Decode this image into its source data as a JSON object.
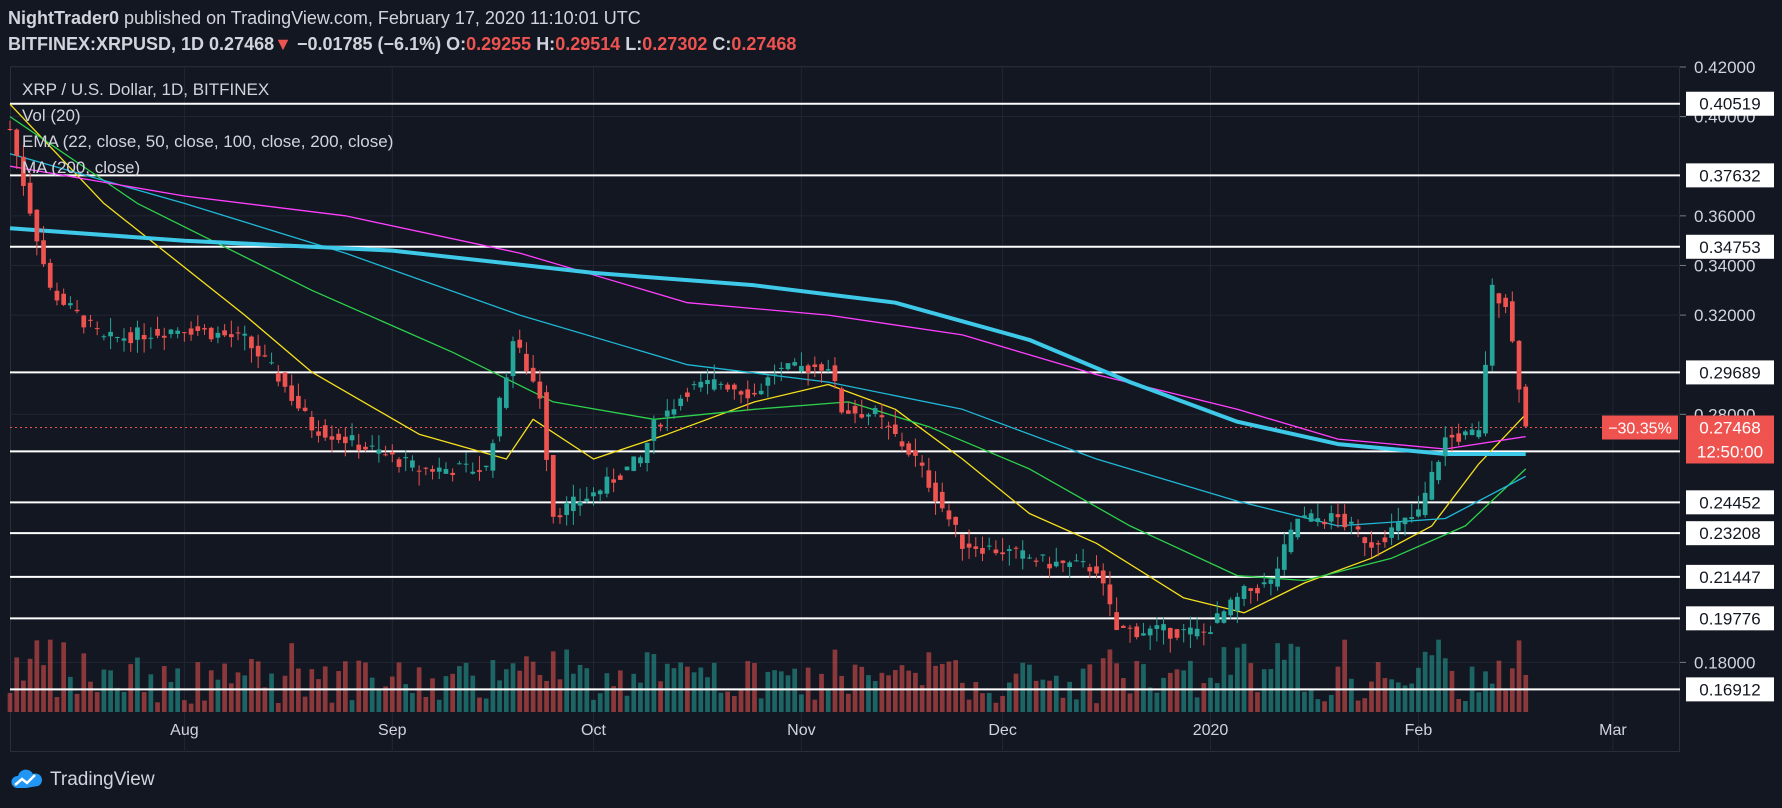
{
  "header": {
    "author": "NightTrader0",
    "published_text": "published on TradingView.com, February 17, 2020 11:10:01 UTC",
    "symbol": "BITFINEX:XRPUSD, 1D",
    "last": "0.27468",
    "change_arrow": "▼",
    "change": "−0.01785 (−6.1%)",
    "open_label": "O:",
    "open": "0.29255",
    "high_label": "H:",
    "high": "0.29514",
    "low_label": "L:",
    "low": "0.27302",
    "close_label": "C:",
    "close": "0.27468"
  },
  "legend": {
    "title": "XRP / U.S. Dollar, 1D, BITFINEX",
    "vol": "Vol (20)",
    "ema": "EMA (22, close, 50, close, 100, close, 200, close)",
    "ma": "MA (200, close)"
  },
  "footer": {
    "brand": "TradingView"
  },
  "colors": {
    "background": "#131722",
    "up": "#26a69a",
    "down": "#ef5350",
    "ema22": "#f7e01c",
    "ema50": "#2dd14b",
    "ema100": "#1fb8d6",
    "ema200": "#ff3fff",
    "ma200": "#3ec9e8",
    "hline": "#ffffff"
  },
  "chart_data": {
    "type": "candlestick",
    "title": "XRP / U.S. Dollar, 1D, BITFINEX",
    "x_tick_labels": [
      "Aug",
      "Sep",
      "Oct",
      "Nov",
      "Dec",
      "2020",
      "Feb",
      "Mar"
    ],
    "x_tick_dates": [
      "2019-08-01",
      "2019-09-01",
      "2019-10-01",
      "2019-11-01",
      "2019-12-01",
      "2020-01-01",
      "2020-02-01",
      "2020-03-01"
    ],
    "y_tick_labels": [
      "0.42000",
      "0.40000",
      "0.36000",
      "0.34000",
      "0.32000",
      "0.28000",
      "0.18000"
    ],
    "ylim": [
      0.16,
      0.42
    ],
    "xlim": [
      "2019-07-06",
      "2020-03-11"
    ],
    "horizontal_levels": [
      0.40519,
      0.37632,
      0.34753,
      0.29689,
      0.26508,
      0.24452,
      0.23208,
      0.21447,
      0.19776,
      0.16912
    ],
    "last_price_badge": {
      "change_pct": "−30.35%",
      "price": "0.27468",
      "countdown": "12:50:00"
    },
    "price_anchors": [
      {
        "date": "2019-07-06",
        "price": 0.395
      },
      {
        "date": "2019-07-12",
        "price": 0.33
      },
      {
        "date": "2019-07-20",
        "price": 0.31
      },
      {
        "date": "2019-08-01",
        "price": 0.315
      },
      {
        "date": "2019-08-10",
        "price": 0.31
      },
      {
        "date": "2019-08-15",
        "price": 0.295
      },
      {
        "date": "2019-08-20",
        "price": 0.275
      },
      {
        "date": "2019-08-25",
        "price": 0.27
      },
      {
        "date": "2019-09-05",
        "price": 0.258
      },
      {
        "date": "2019-09-15",
        "price": 0.258
      },
      {
        "date": "2019-09-19",
        "price": 0.31
      },
      {
        "date": "2019-09-23",
        "price": 0.288
      },
      {
        "date": "2019-09-25",
        "price": 0.24
      },
      {
        "date": "2019-10-01",
        "price": 0.248
      },
      {
        "date": "2019-10-08",
        "price": 0.262
      },
      {
        "date": "2019-10-10",
        "price": 0.275
      },
      {
        "date": "2019-10-15",
        "price": 0.29
      },
      {
        "date": "2019-10-20",
        "price": 0.293
      },
      {
        "date": "2019-10-25",
        "price": 0.288
      },
      {
        "date": "2019-10-28",
        "price": 0.297
      },
      {
        "date": "2019-11-05",
        "price": 0.3
      },
      {
        "date": "2019-11-07",
        "price": 0.282
      },
      {
        "date": "2019-11-12",
        "price": 0.28
      },
      {
        "date": "2019-11-18",
        "price": 0.262
      },
      {
        "date": "2019-11-25",
        "price": 0.228
      },
      {
        "date": "2019-12-01",
        "price": 0.225
      },
      {
        "date": "2019-12-08",
        "price": 0.22
      },
      {
        "date": "2019-12-15",
        "price": 0.218
      },
      {
        "date": "2019-12-18",
        "price": 0.193
      },
      {
        "date": "2019-12-31",
        "price": 0.192
      },
      {
        "date": "2020-01-06",
        "price": 0.208
      },
      {
        "date": "2020-01-10",
        "price": 0.212
      },
      {
        "date": "2020-01-14",
        "price": 0.238
      },
      {
        "date": "2020-01-20",
        "price": 0.238
      },
      {
        "date": "2020-01-25",
        "price": 0.228
      },
      {
        "date": "2020-02-01",
        "price": 0.24
      },
      {
        "date": "2020-02-05",
        "price": 0.27
      },
      {
        "date": "2020-02-10",
        "price": 0.272
      },
      {
        "date": "2020-02-12",
        "price": 0.33
      },
      {
        "date": "2020-02-14",
        "price": 0.325
      },
      {
        "date": "2020-02-16",
        "price": 0.2925
      },
      {
        "date": "2020-02-17",
        "price": 0.27468
      }
    ],
    "series": [
      {
        "name": "EMA 22",
        "points": [
          [
            "2019-07-06",
            0.405
          ],
          [
            "2019-07-20",
            0.365
          ],
          [
            "2019-08-10",
            0.32
          ],
          [
            "2019-08-20",
            0.297
          ],
          [
            "2019-09-05",
            0.272
          ],
          [
            "2019-09-18",
            0.262
          ],
          [
            "2019-09-22",
            0.278
          ],
          [
            "2019-10-01",
            0.262
          ],
          [
            "2019-10-12",
            0.272
          ],
          [
            "2019-10-25",
            0.285
          ],
          [
            "2019-11-05",
            0.292
          ],
          [
            "2019-11-15",
            0.282
          ],
          [
            "2019-11-25",
            0.262
          ],
          [
            "2019-12-05",
            0.24
          ],
          [
            "2019-12-15",
            0.228
          ],
          [
            "2019-12-28",
            0.206
          ],
          [
            "2020-01-06",
            0.2
          ],
          [
            "2020-01-15",
            0.212
          ],
          [
            "2020-01-25",
            0.222
          ],
          [
            "2020-02-03",
            0.235
          ],
          [
            "2020-02-10",
            0.26
          ],
          [
            "2020-02-17",
            0.28
          ]
        ]
      },
      {
        "name": "EMA 50",
        "points": [
          [
            "2019-07-06",
            0.4
          ],
          [
            "2019-07-25",
            0.365
          ],
          [
            "2019-08-20",
            0.33
          ],
          [
            "2019-09-10",
            0.305
          ],
          [
            "2019-09-25",
            0.285
          ],
          [
            "2019-10-10",
            0.278
          ],
          [
            "2019-10-25",
            0.282
          ],
          [
            "2019-11-08",
            0.285
          ],
          [
            "2019-11-20",
            0.275
          ],
          [
            "2019-12-05",
            0.258
          ],
          [
            "2019-12-20",
            0.235
          ],
          [
            "2020-01-05",
            0.215
          ],
          [
            "2020-01-15",
            0.213
          ],
          [
            "2020-01-28",
            0.222
          ],
          [
            "2020-02-08",
            0.235
          ],
          [
            "2020-02-17",
            0.258
          ]
        ]
      },
      {
        "name": "EMA 100",
        "points": [
          [
            "2019-07-06",
            0.385
          ],
          [
            "2019-08-01",
            0.365
          ],
          [
            "2019-08-25",
            0.345
          ],
          [
            "2019-09-20",
            0.32
          ],
          [
            "2019-10-15",
            0.3
          ],
          [
            "2019-11-05",
            0.293
          ],
          [
            "2019-11-25",
            0.282
          ],
          [
            "2019-12-15",
            0.262
          ],
          [
            "2020-01-05",
            0.245
          ],
          [
            "2020-01-20",
            0.235
          ],
          [
            "2020-02-05",
            0.238
          ],
          [
            "2020-02-17",
            0.255
          ]
        ]
      },
      {
        "name": "EMA 200",
        "points": [
          [
            "2019-07-06",
            0.38
          ],
          [
            "2019-08-01",
            0.368
          ],
          [
            "2019-08-25",
            0.36
          ],
          [
            "2019-09-20",
            0.345
          ],
          [
            "2019-10-15",
            0.325
          ],
          [
            "2019-11-05",
            0.32
          ],
          [
            "2019-11-25",
            0.312
          ],
          [
            "2019-12-15",
            0.296
          ],
          [
            "2020-01-05",
            0.282
          ],
          [
            "2020-01-20",
            0.27
          ],
          [
            "2020-02-05",
            0.266
          ],
          [
            "2020-02-17",
            0.271
          ]
        ]
      },
      {
        "name": "MA 200",
        "points": [
          [
            "2019-07-06",
            0.355
          ],
          [
            "2019-08-01",
            0.35
          ],
          [
            "2019-09-01",
            0.346
          ],
          [
            "2019-10-01",
            0.337
          ],
          [
            "2019-10-25",
            0.332
          ],
          [
            "2019-11-15",
            0.325
          ],
          [
            "2019-12-05",
            0.31
          ],
          [
            "2019-12-20",
            0.293
          ],
          [
            "2020-01-05",
            0.277
          ],
          [
            "2020-01-20",
            0.268
          ],
          [
            "2020-02-05",
            0.264
          ],
          [
            "2020-02-17",
            0.264
          ]
        ]
      }
    ]
  }
}
